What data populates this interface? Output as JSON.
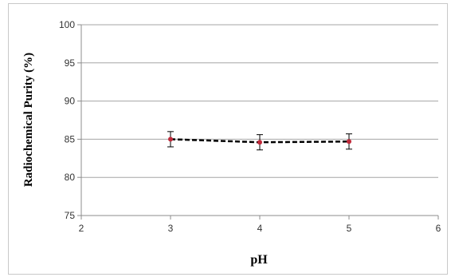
{
  "chart_data": {
    "type": "line",
    "xlabel": "pH",
    "ylabel": "Radiochemical Purity (%)",
    "xlim": [
      2,
      6
    ],
    "ylim": [
      75,
      100
    ],
    "x_ticks": [
      2,
      3,
      4,
      5,
      6
    ],
    "y_ticks": [
      75,
      80,
      85,
      90,
      95,
      100
    ],
    "grid": "horizontal",
    "series": [
      {
        "x": [
          3,
          4,
          5
        ],
        "y": [
          85.0,
          84.6,
          84.7
        ],
        "error": [
          1.0,
          1.0,
          1.0
        ],
        "line_style": "dashed",
        "line_color": "#000000",
        "marker_color": "#c0293a"
      }
    ]
  }
}
